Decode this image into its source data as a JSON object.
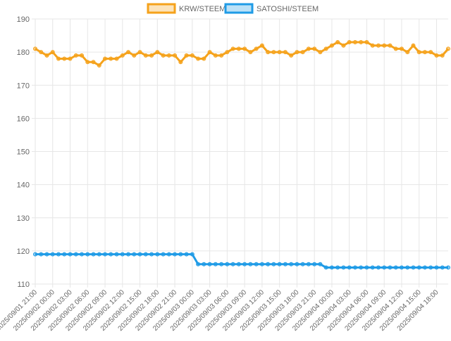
{
  "chart_data": {
    "type": "line",
    "categories": [
      "2025/09/01 21:00",
      null,
      null,
      "2025/09/02 00:00",
      null,
      null,
      "2025/09/02 03:00",
      null,
      null,
      "2025/09/02 06:00",
      null,
      null,
      "2025/09/02 09:00",
      null,
      null,
      "2025/09/02 12:00",
      null,
      null,
      "2025/09/02 15:00",
      null,
      null,
      "2025/09/02 18:00",
      null,
      null,
      "2025/09/02 21:00",
      null,
      null,
      "2025/09/03 00:00",
      null,
      null,
      "2025/09/03 03:00",
      null,
      null,
      "2025/09/03 06:00",
      null,
      null,
      "2025/09/03 09:00",
      null,
      null,
      "2025/09/03 12:00",
      null,
      null,
      "2025/09/03 15:00",
      null,
      null,
      "2025/09/03 18:00",
      null,
      null,
      "2025/09/03 21:00",
      null,
      null,
      "2025/09/04 00:00",
      null,
      null,
      "2025/09/04 03:00",
      null,
      null,
      "2025/09/04 06:00",
      null,
      null,
      "2025/09/04 09:00",
      null,
      null,
      "2025/09/04 12:00",
      null,
      null,
      "2025/09/04 15:00",
      null,
      null,
      "2025/09/04 18:00",
      null,
      null
    ],
    "series": [
      {
        "name": "KRW/STEEM",
        "color": "#f5a21b",
        "values": [
          181,
          180,
          179,
          180,
          178,
          178,
          178,
          179,
          179,
          177,
          177,
          176,
          178,
          178,
          178,
          179,
          180,
          179,
          180,
          179,
          179,
          180,
          179,
          179,
          179,
          177,
          179,
          179,
          178,
          178,
          180,
          179,
          179,
          180,
          181,
          181,
          181,
          180,
          181,
          182,
          180,
          180,
          180,
          180,
          179,
          180,
          180,
          181,
          181,
          180,
          181,
          182,
          183,
          182,
          183,
          183,
          183,
          183,
          182,
          182,
          182,
          182,
          181,
          181,
          180,
          182,
          180,
          180,
          180,
          179,
          179,
          181
        ]
      },
      {
        "name": "SATOSHI/STEEM",
        "color": "#1f9be6",
        "values": [
          119,
          119,
          119,
          119,
          119,
          119,
          119,
          119,
          119,
          119,
          119,
          119,
          119,
          119,
          119,
          119,
          119,
          119,
          119,
          119,
          119,
          119,
          119,
          119,
          119,
          119,
          119,
          119,
          116,
          116,
          116,
          116,
          116,
          116,
          116,
          116,
          116,
          116,
          116,
          116,
          116,
          116,
          116,
          116,
          116,
          116,
          116,
          116,
          116,
          116,
          115,
          115,
          115,
          115,
          115,
          115,
          115,
          115,
          115,
          115,
          115,
          115,
          115,
          115,
          115,
          115,
          115,
          115,
          115,
          115,
          115,
          115
        ]
      }
    ],
    "ylim": [
      110,
      190
    ],
    "yticks": [
      110,
      120,
      130,
      140,
      150,
      160,
      170,
      180,
      190
    ],
    "grid": true
  }
}
